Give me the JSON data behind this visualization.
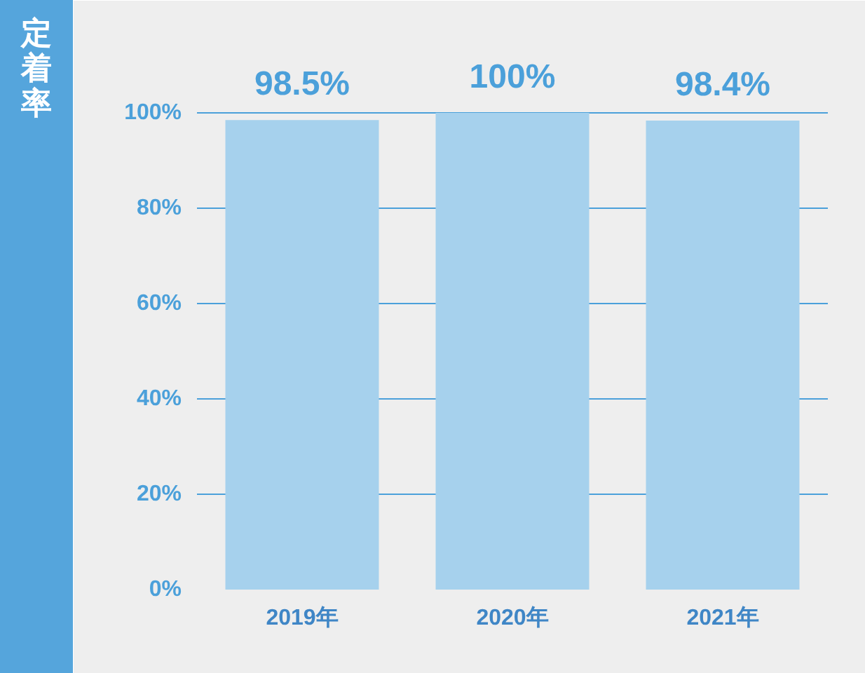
{
  "chart_data": {
    "type": "bar",
    "ylabel": "定着率",
    "categories": [
      "2019年",
      "2020年",
      "2021年"
    ],
    "values": [
      98.5,
      100,
      98.4
    ],
    "value_labels": [
      "98.5%",
      "100%",
      "98.4%"
    ],
    "color": "#a6d1ed",
    "ylim": [
      0,
      115
    ],
    "yticks": [
      {
        "value": 0,
        "label": "0%"
      },
      {
        "value": 20,
        "label": "20%"
      },
      {
        "value": 40,
        "label": "40%"
      },
      {
        "value": 60,
        "label": "60%"
      },
      {
        "value": 80,
        "label": "80%"
      },
      {
        "value": 100,
        "label": "100%"
      }
    ],
    "grid": "y"
  }
}
